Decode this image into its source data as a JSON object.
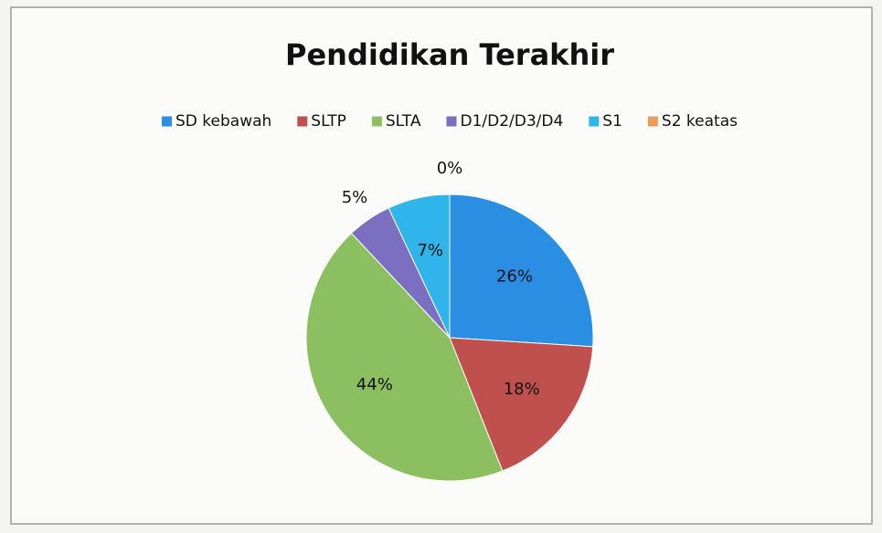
{
  "chart_data": {
    "type": "pie",
    "title": "Pendidikan Terakhir",
    "categories": [
      "SD kebawah",
      "SLTP",
      "SLTA",
      "D1/D2/D3/D4",
      "S1",
      "S2 keatas"
    ],
    "values": [
      26,
      18,
      44,
      5,
      7,
      0
    ],
    "value_labels": [
      "26%",
      "18%",
      "44%",
      "5%",
      "7%",
      "0%"
    ],
    "colors": [
      "#2a8ee3",
      "#c0504d",
      "#8cbf5f",
      "#7a6fc0",
      "#2fb5ea",
      "#f09a5a"
    ],
    "legend": "top"
  }
}
